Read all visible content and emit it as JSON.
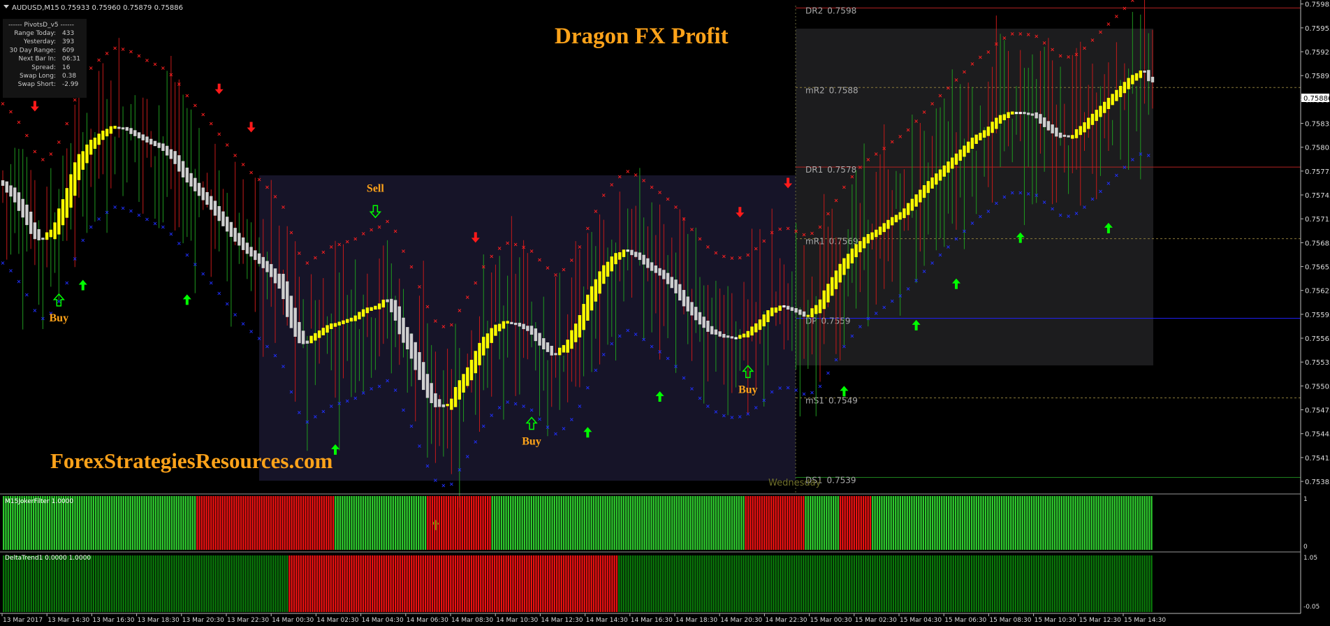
{
  "window_title": "AUDUSD,M15",
  "quote": "0.75933 0.75960 0.75879 0.75886",
  "watermark_title": "Dragon FX Profit",
  "watermark_site": "ForexStrategiesResources.com",
  "pivots_panel": {
    "header": "PivotsD_v5",
    "rows": [
      {
        "label": "Range Today:",
        "value": "433"
      },
      {
        "label": "Yesterday:",
        "value": "393"
      },
      {
        "label": "30 Day Range:",
        "value": "609"
      },
      {
        "label": "Next Bar In:",
        "value": "06:31"
      },
      {
        "label": "Spread:",
        "value": "16"
      },
      {
        "label": "Swap Long:",
        "value": "0.38"
      },
      {
        "label": "Swap Short:",
        "value": "-2.99"
      }
    ]
  },
  "chart_data": {
    "type": "candlestick",
    "symbol": "AUDUSD",
    "timeframe": "M15",
    "ylim": [
      0.75371,
      0.7599
    ],
    "y_ticks": [
      "0.75985",
      "0.75955",
      "0.75925",
      "0.75895",
      "0.75865",
      "0.75835",
      "0.75805",
      "0.75775",
      "0.75745",
      "0.75715",
      "0.75685",
      "0.75655",
      "0.75625",
      "0.75595",
      "0.75565",
      "0.75535",
      "0.75505",
      "0.75475",
      "0.75445",
      "0.75415",
      "0.75385"
    ],
    "current_price": "0.75886",
    "x_ticks": [
      "13 Mar 2017",
      "13 Mar 14:30",
      "13 Mar 16:30",
      "13 Mar 18:30",
      "13 Mar 20:30",
      "13 Mar 22:30",
      "14 Mar 00:30",
      "14 Mar 02:30",
      "14 Mar 04:30",
      "14 Mar 06:30",
      "14 Mar 08:30",
      "14 Mar 10:30",
      "14 Mar 12:30",
      "14 Mar 14:30",
      "14 Mar 16:30",
      "14 Mar 18:30",
      "14 Mar 20:30",
      "14 Mar 22:30",
      "15 Mar 00:30",
      "15 Mar 02:30",
      "15 Mar 04:30",
      "15 Mar 06:30",
      "15 Mar 08:30",
      "15 Mar 10:30",
      "15 Mar 12:30",
      "15 Mar 14:30"
    ],
    "session_label": "Wednesday",
    "pivot_levels": [
      {
        "label": "DR2",
        "value": "0.7598",
        "price": 0.7598,
        "style": "solid",
        "color": "#b22222"
      },
      {
        "label": "mR2",
        "value": "0.7588",
        "price": 0.7588,
        "style": "dashed",
        "color": "#8a7a3a"
      },
      {
        "label": "DR1",
        "value": "0.7578",
        "price": 0.7578,
        "style": "solid",
        "color": "#b22222"
      },
      {
        "label": "mR1",
        "value": "0.7569",
        "price": 0.7569,
        "style": "dashed",
        "color": "#8a7a3a"
      },
      {
        "label": "DP",
        "value": "0.7559",
        "price": 0.7559,
        "style": "solid",
        "color": "#2020ff"
      },
      {
        "label": "mS1",
        "value": "0.7549",
        "price": 0.7549,
        "style": "dashed",
        "color": "#8a7a3a"
      },
      {
        "label": "DS1",
        "value": "0.7539",
        "price": 0.7539,
        "style": "solid",
        "color": "#1f8a1f"
      }
    ],
    "trend_path": [
      [
        0,
        0.7576
      ],
      [
        3,
        0.75745
      ],
      [
        6,
        0.7572
      ],
      [
        8,
        0.757
      ],
      [
        10,
        0.7569
      ],
      [
        13,
        0.757
      ],
      [
        16,
        0.75735
      ],
      [
        19,
        0.7578
      ],
      [
        22,
        0.75805
      ],
      [
        25,
        0.7582
      ],
      [
        28,
        0.7583
      ],
      [
        31,
        0.75828
      ],
      [
        34,
        0.7582
      ],
      [
        37,
        0.75812
      ],
      [
        40,
        0.75805
      ],
      [
        43,
        0.75792
      ],
      [
        46,
        0.7577
      ],
      [
        49,
        0.75752
      ],
      [
        52,
        0.75735
      ],
      [
        55,
        0.75715
      ],
      [
        58,
        0.75695
      ],
      [
        61,
        0.75678
      ],
      [
        64,
        0.75665
      ],
      [
        67,
        0.7565
      ],
      [
        70,
        0.7563
      ],
      [
        72,
        0.75598
      ],
      [
        74,
        0.75572
      ],
      [
        76,
        0.7556
      ],
      [
        79,
        0.7557
      ],
      [
        82,
        0.7558
      ],
      [
        85,
        0.75585
      ],
      [
        88,
        0.7559
      ],
      [
        91,
        0.756
      ],
      [
        94,
        0.75605
      ],
      [
        96,
        0.75612
      ],
      [
        98,
        0.756
      ],
      [
        100,
        0.75575
      ],
      [
        102,
        0.75555
      ],
      [
        104,
        0.7553
      ],
      [
        106,
        0.75505
      ],
      [
        108,
        0.75487
      ],
      [
        110,
        0.7548
      ],
      [
        112,
        0.75482
      ],
      [
        114,
        0.755
      ],
      [
        117,
        0.75525
      ],
      [
        120,
        0.75555
      ],
      [
        123,
        0.75575
      ],
      [
        126,
        0.75585
      ],
      [
        129,
        0.75582
      ],
      [
        132,
        0.75575
      ],
      [
        135,
        0.75558
      ],
      [
        138,
        0.75545
      ],
      [
        141,
        0.75555
      ],
      [
        144,
        0.7558
      ],
      [
        147,
        0.75615
      ],
      [
        150,
        0.75645
      ],
      [
        153,
        0.75665
      ],
      [
        156,
        0.75675
      ],
      [
        159,
        0.75668
      ],
      [
        162,
        0.75655
      ],
      [
        165,
        0.75645
      ],
      [
        168,
        0.7563
      ],
      [
        171,
        0.75608
      ],
      [
        174,
        0.7559
      ],
      [
        177,
        0.75575
      ],
      [
        180,
        0.75568
      ],
      [
        183,
        0.75565
      ],
      [
        186,
        0.7557
      ],
      [
        189,
        0.75582
      ],
      [
        192,
        0.75598
      ],
      [
        195,
        0.75605
      ],
      [
        198,
        0.756
      ],
      [
        201,
        0.75593
      ],
      [
        204,
        0.75605
      ],
      [
        207,
        0.7563
      ],
      [
        210,
        0.75655
      ],
      [
        213,
        0.75675
      ],
      [
        216,
        0.7569
      ],
      [
        219,
        0.757
      ],
      [
        222,
        0.75712
      ],
      [
        225,
        0.75722
      ],
      [
        228,
        0.75738
      ],
      [
        231,
        0.75755
      ],
      [
        234,
        0.7577
      ],
      [
        237,
        0.75785
      ],
      [
        240,
        0.758
      ],
      [
        243,
        0.75815
      ],
      [
        246,
        0.75825
      ],
      [
        249,
        0.7584
      ],
      [
        252,
        0.75848
      ],
      [
        255,
        0.75848
      ],
      [
        258,
        0.75845
      ],
      [
        261,
        0.75832
      ],
      [
        264,
        0.7582
      ],
      [
        267,
        0.75818
      ],
      [
        270,
        0.7583
      ],
      [
        273,
        0.75845
      ],
      [
        276,
        0.7586
      ],
      [
        279,
        0.75875
      ],
      [
        282,
        0.7589
      ],
      [
        285,
        0.759
      ],
      [
        287,
        0.7589
      ]
    ],
    "signals": [
      {
        "type": "buy",
        "label": "Buy",
        "bar": 14,
        "price": 0.75645
      },
      {
        "type": "sell",
        "label": "Sell",
        "bar": 93,
        "price": 0.757
      },
      {
        "type": "buy",
        "label": "Buy",
        "bar": 132,
        "price": 0.7549
      },
      {
        "type": "buy",
        "label": "Buy",
        "bar": 186,
        "price": 0.75555
      }
    ],
    "indicators": [
      {
        "name": "M15JokerFilter 1.0000",
        "y_top": "1",
        "y_bottom": "0"
      },
      {
        "name": "DeltaTrend1 0.0000 1.0000",
        "y_top": "1.05",
        "y_bottom": "-0.05"
      }
    ],
    "joker_filter_segments": [
      [
        0,
        0.17,
        "green"
      ],
      [
        0.17,
        0.29,
        "red"
      ],
      [
        0.29,
        0.37,
        "green"
      ],
      [
        0.37,
        0.425,
        "red"
      ],
      [
        0.425,
        0.645,
        "green"
      ],
      [
        0.645,
        0.698,
        "red"
      ],
      [
        0.698,
        0.727,
        "green"
      ],
      [
        0.727,
        0.756,
        "red"
      ],
      [
        0.756,
        1,
        "green"
      ]
    ],
    "delta_trend_segments": [
      [
        0,
        0.25,
        "dkgreen"
      ],
      [
        0.25,
        0.535,
        "red"
      ],
      [
        0.535,
        1,
        "dkgreen"
      ]
    ]
  }
}
